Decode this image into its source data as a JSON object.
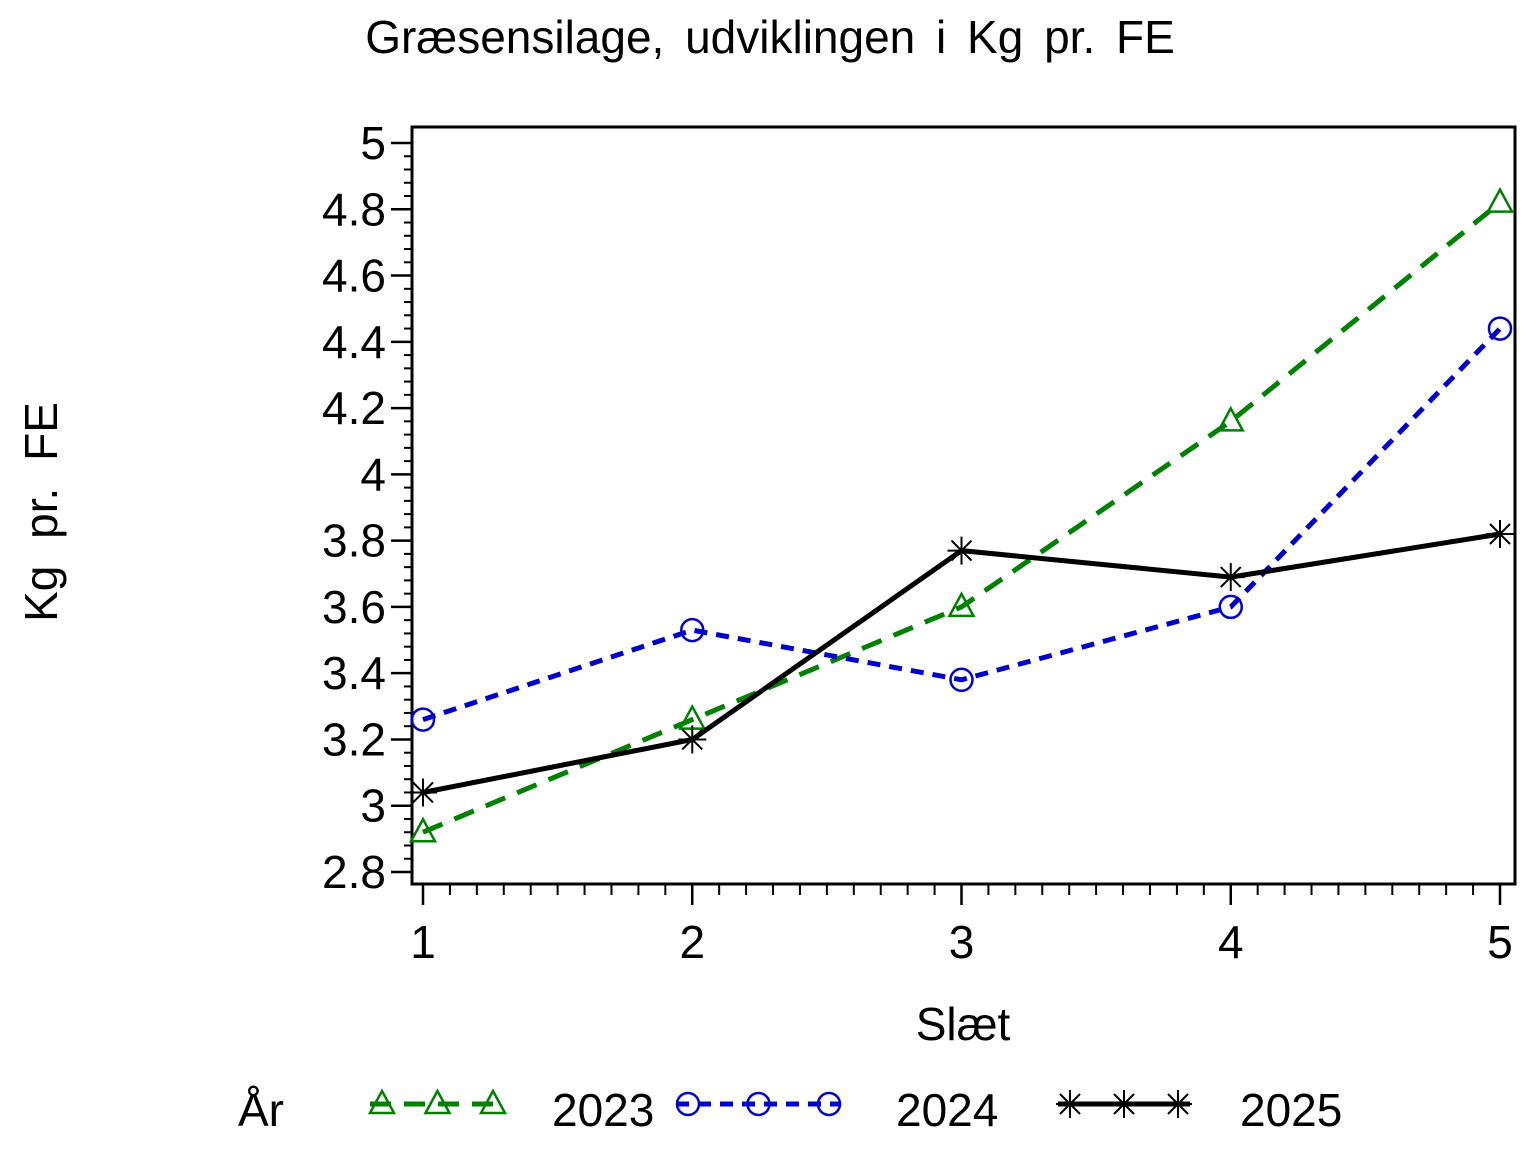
{
  "figure": {
    "background": "#ffffff",
    "text_color": "#000000"
  },
  "chart_data": {
    "type": "line",
    "title": "Græsensilage, udviklingen i Kg pr. FE",
    "xlabel": "Slæt",
    "ylabel": "Kg pr. FE",
    "legend_title": "År",
    "legend_position": "bottom",
    "grid": false,
    "x": [
      1,
      2,
      3,
      4,
      5
    ],
    "xlim": [
      1,
      5
    ],
    "ylim": [
      2.8,
      5.0
    ],
    "x_ticks": [
      1,
      2,
      3,
      4,
      5
    ],
    "x_tick_labels": [
      "1",
      "2",
      "3",
      "4",
      "5"
    ],
    "x_minor_divisions": 10,
    "y_ticks": [
      2.8,
      3.0,
      3.2,
      3.4,
      3.6,
      3.8,
      4.0,
      4.2,
      4.4,
      4.6,
      4.8,
      5.0
    ],
    "y_tick_labels": [
      "2.8",
      "3",
      "3.2",
      "3.4",
      "3.6",
      "3.8",
      "4",
      "4.2",
      "4.4",
      "4.6",
      "4.8",
      "5"
    ],
    "y_minor_divisions": 5,
    "series": [
      {
        "name": "2023",
        "color": "#008000",
        "line_style": "dashed",
        "dash": [
          21,
          13
        ],
        "marker": "triangle",
        "values": [
          2.92,
          3.26,
          3.6,
          4.16,
          4.82
        ]
      },
      {
        "name": "2024",
        "color": "#0000CC",
        "line_style": "dashed",
        "dash": [
          13,
          9
        ],
        "marker": "circle",
        "values": [
          3.26,
          3.53,
          3.38,
          3.6,
          4.44
        ]
      },
      {
        "name": "2025",
        "color": "#000000",
        "line_style": "solid",
        "dash": null,
        "marker": "asterisk",
        "values": [
          3.04,
          3.2,
          3.77,
          3.69,
          3.82
        ]
      }
    ]
  }
}
